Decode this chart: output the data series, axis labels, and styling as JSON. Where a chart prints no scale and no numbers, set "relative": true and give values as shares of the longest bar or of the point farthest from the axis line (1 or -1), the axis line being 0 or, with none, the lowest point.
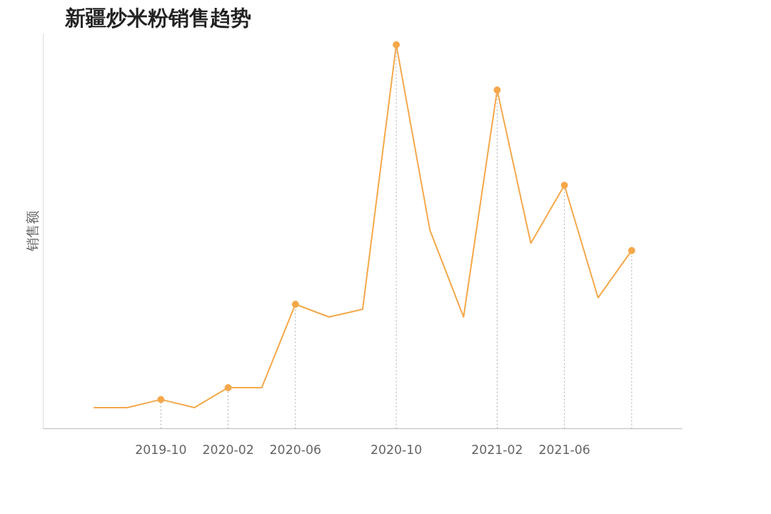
{
  "chart_data": {
    "type": "line",
    "title": "新疆炒米粉销售趋势",
    "ylabel": "销售额",
    "relative": true,
    "categories": [
      null,
      null,
      "2019-10",
      null,
      "2020-02",
      null,
      "2020-06",
      null,
      null,
      "2020-10",
      null,
      null,
      "2021-02",
      null,
      "2021-06",
      null,
      null
    ],
    "series": [
      {
        "color": "#f5a84a",
        "values": [
          0.055,
          0.055,
          0.076,
          0.055,
          0.107,
          0.107,
          0.324,
          0.291,
          0.311,
          1,
          0.517,
          0.291,
          0.882,
          0.483,
          0.634,
          0.341,
          0.464
        ]
      },
      {
        "type": "lollipop",
        "color": "#f5a84a",
        "line_style": "dotted",
        "marker": "circle",
        "values": [
          null,
          null,
          0.076,
          null,
          0.107,
          null,
          0.324,
          null,
          null,
          1,
          null,
          null,
          0.882,
          null,
          0.634,
          null,
          0.464
        ]
      }
    ]
  }
}
